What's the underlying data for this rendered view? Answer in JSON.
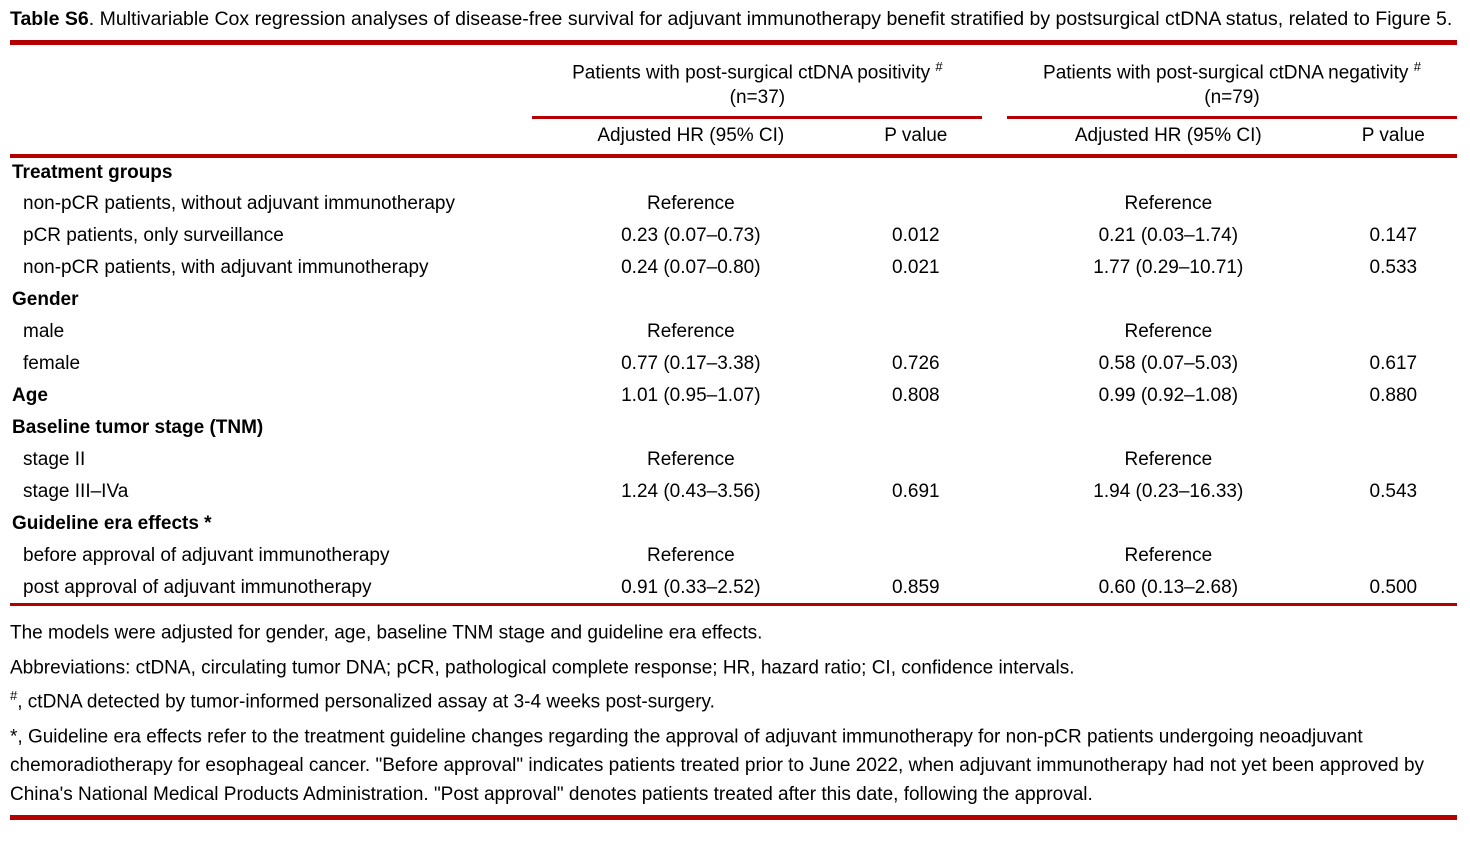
{
  "title": {
    "label": "Table S6",
    "text": ". Multivariable Cox regression analyses of disease-free survival for adjuvant immunotherapy benefit stratified by postsurgical ctDNA status, related to Figure 5."
  },
  "colors": {
    "rule_red": "#b40000",
    "text": "#000000",
    "background": "#ffffff"
  },
  "table": {
    "groups": [
      {
        "title": "Patients with post-surgical ctDNA positivity",
        "marker": "#",
        "n": "(n=37)"
      },
      {
        "title": "Patients with post-surgical ctDNA negativity",
        "marker": "#",
        "n": "(n=79)"
      }
    ],
    "subheaders": {
      "hr": "Adjusted HR (95% CI)",
      "p": "P value"
    },
    "rows": [
      {
        "label": "Treatment groups",
        "bold": true,
        "hr1": "",
        "p1": "",
        "hr2": "",
        "p2": ""
      },
      {
        "label": "non-pCR patients, without adjuvant immunotherapy",
        "bold": false,
        "hr1": "Reference",
        "p1": "",
        "hr2": "Reference",
        "p2": ""
      },
      {
        "label": "pCR patients, only surveillance",
        "bold": false,
        "hr1": "0.23 (0.07–0.73)",
        "p1": "0.012",
        "hr2": "0.21 (0.03–1.74)",
        "p2": "0.147"
      },
      {
        "label": "non-pCR patients, with adjuvant immunotherapy",
        "bold": false,
        "hr1": "0.24 (0.07–0.80)",
        "p1": "0.021",
        "hr2": "1.77 (0.29–10.71)",
        "p2": "0.533"
      },
      {
        "label": "Gender",
        "bold": true,
        "hr1": "",
        "p1": "",
        "hr2": "",
        "p2": ""
      },
      {
        "label": "male",
        "bold": false,
        "hr1": "Reference",
        "p1": "",
        "hr2": "Reference",
        "p2": ""
      },
      {
        "label": "female",
        "bold": false,
        "hr1": "0.77 (0.17–3.38)",
        "p1": "0.726",
        "hr2": "0.58 (0.07–5.03)",
        "p2": "0.617"
      },
      {
        "label": "Age",
        "bold": true,
        "hr1": "1.01 (0.95–1.07)",
        "p1": "0.808",
        "hr2": "0.99 (0.92–1.08)",
        "p2": "0.880"
      },
      {
        "label": "Baseline tumor stage (TNM)",
        "bold": true,
        "hr1": "",
        "p1": "",
        "hr2": "",
        "p2": ""
      },
      {
        "label": "stage II",
        "bold": false,
        "hr1": "Reference",
        "p1": "",
        "hr2": "Reference",
        "p2": ""
      },
      {
        "label": "stage III–IVa",
        "bold": false,
        "hr1": "1.24 (0.43–3.56)",
        "p1": "0.691",
        "hr2": "1.94 (0.23–16.33)",
        "p2": "0.543"
      },
      {
        "label": "Guideline era effects *",
        "bold": true,
        "hr1": "",
        "p1": "",
        "hr2": "",
        "p2": ""
      },
      {
        "label": "before approval of adjuvant immunotherapy",
        "bold": false,
        "hr1": "Reference",
        "p1": "",
        "hr2": "Reference",
        "p2": ""
      },
      {
        "label": "post approval of adjuvant immunotherapy",
        "bold": false,
        "hr1": "0.91 (0.33–2.52)",
        "p1": "0.859",
        "hr2": "0.60 (0.13–2.68)",
        "p2": "0.500"
      }
    ]
  },
  "footnotes": [
    {
      "sup": "",
      "text": "The models were adjusted for gender, age, baseline TNM stage and guideline era effects."
    },
    {
      "sup": "",
      "text": "Abbreviations: ctDNA, circulating tumor DNA; pCR, pathological complete response; HR, hazard ratio; CI, confidence intervals."
    },
    {
      "sup": "#",
      "text": ", ctDNA detected by tumor-informed personalized assay at 3-4 weeks post-surgery."
    },
    {
      "sup": "",
      "text": "*, Guideline era effects refer to the treatment guideline changes regarding the approval of adjuvant immunotherapy for non-pCR patients undergoing neoadjuvant chemoradiotherapy for esophageal cancer. \"Before approval\" indicates patients treated prior to June 2022, when adjuvant immunotherapy had not yet been approved by China's National Medical Products Administration. \"Post approval\" denotes patients treated after this date, following the approval."
    }
  ]
}
